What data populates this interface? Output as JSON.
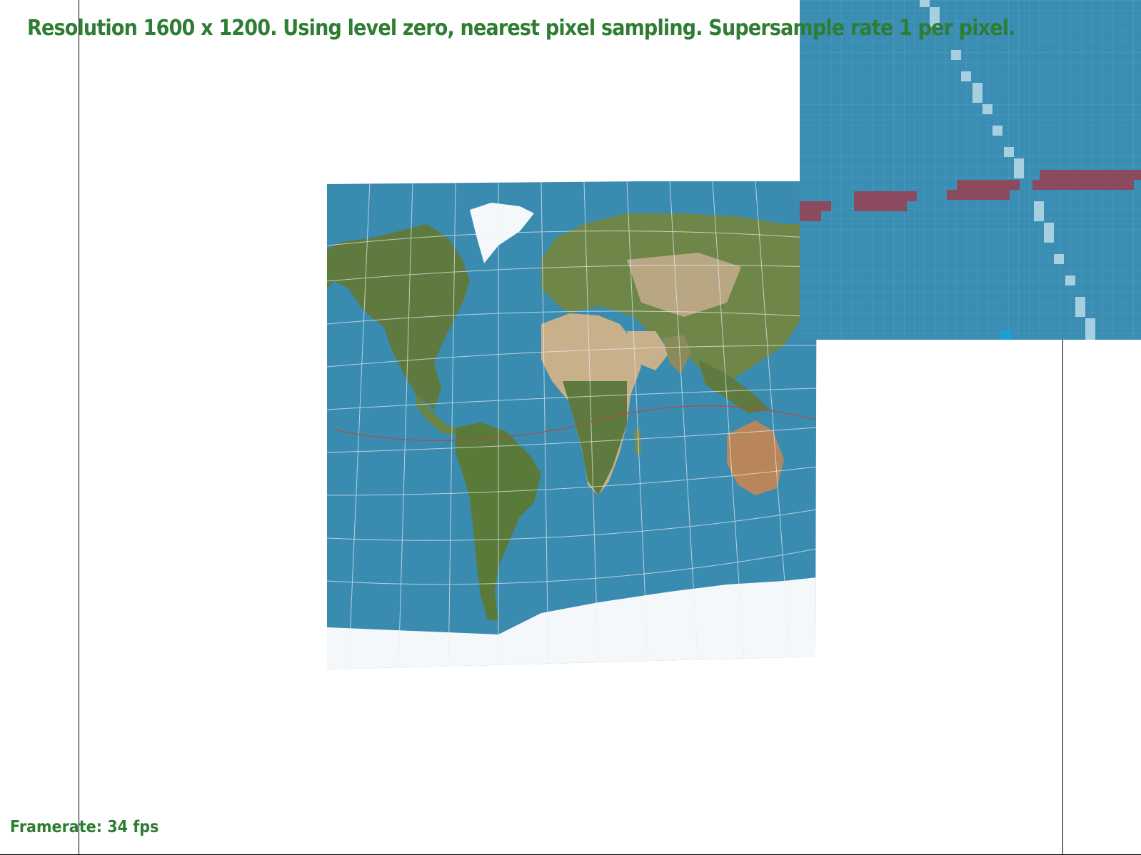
{
  "window": {
    "header_text": "Resolution 1600 x 1200. Using level zero, nearest pixel sampling. Supersample rate 1 per pixel.",
    "framerate_text": "Framerate: 34 fps",
    "text_color": "#2e7d32"
  },
  "texture": {
    "content": "world-map-satellite",
    "colors": {
      "ocean": "#3a8bb0",
      "land_green": "#5f7a3e",
      "land_desert": "#c7b08a",
      "ice": "#f4f8fa",
      "grid": "#e8f0f5",
      "equator": "#b34a4a"
    }
  },
  "zoom_inset": {
    "content": "pixel-zoom-of-texture",
    "colors": {
      "pixel_bg": "#3a8db3",
      "pixel_grid": "#5fa3c2",
      "red_band": "#8b4a5e",
      "light_diagonal": "#a6cfe0"
    }
  }
}
